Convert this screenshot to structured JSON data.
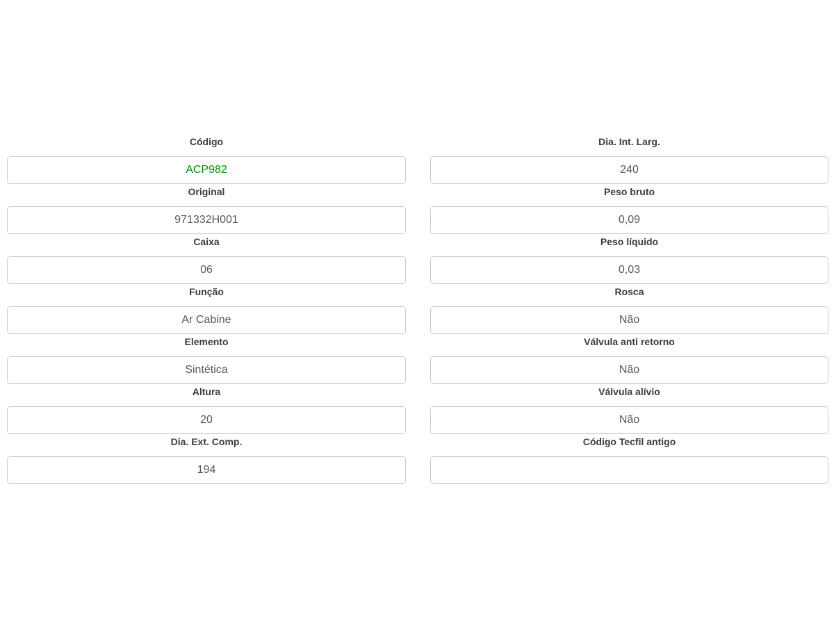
{
  "colors": {
    "label_text": "#3b3b3b",
    "value_text": "#58585a",
    "code_green": "#008f00",
    "box_border": "#cccccc",
    "page_background": "#ffffff"
  },
  "columns": {
    "left": {
      "fields": [
        {
          "label": "Código",
          "value": "ACP982",
          "highlight": true
        },
        {
          "label": "Original",
          "value": "971332H001"
        },
        {
          "label": "Caixa",
          "value": "06"
        },
        {
          "label": "Função",
          "value": "Ar Cabine"
        },
        {
          "label": "Elemento",
          "value": "Sintética"
        },
        {
          "label": "Altura",
          "value": "20"
        },
        {
          "label": "Dia. Ext. Comp.",
          "value": "194"
        }
      ]
    },
    "right": {
      "fields": [
        {
          "label": "Dia. Int. Larg.",
          "value": "240"
        },
        {
          "label": "Peso bruto",
          "value": "0,09"
        },
        {
          "label": "Peso líquido",
          "value": "0,03"
        },
        {
          "label": "Rosca",
          "value": "Não"
        },
        {
          "label": "Válvula anti retorno",
          "value": "Não"
        },
        {
          "label": "Válvula alívio",
          "value": "Não"
        },
        {
          "label": "Código Tecfil antigo",
          "value": ""
        }
      ]
    }
  }
}
